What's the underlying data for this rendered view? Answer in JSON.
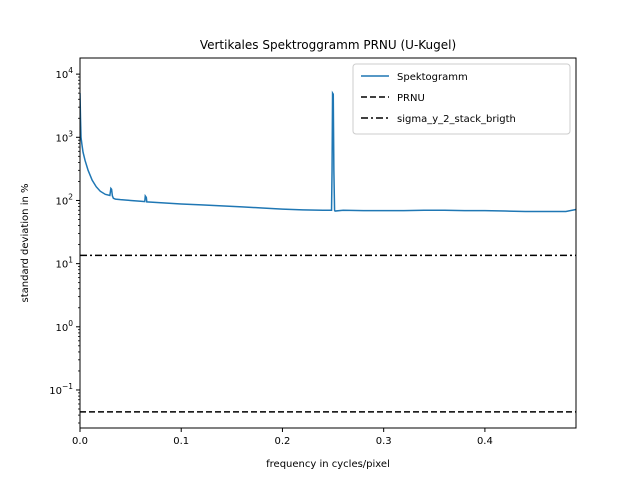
{
  "chart_data": {
    "type": "line",
    "title": "Vertikales Spektroggramm PRNU (U-Kugel)",
    "xlabel": "frequency in cycles/pixel",
    "ylabel": "standard deviation in %",
    "xlim": [
      0.0,
      0.49
    ],
    "ylim": [
      0.025,
      18000
    ],
    "yscale": "log",
    "x_ticks": [
      0.0,
      0.1,
      0.2,
      0.3,
      0.4
    ],
    "x_tick_labels": [
      "0.0",
      "0.1",
      "0.2",
      "0.3",
      "0.4"
    ],
    "y_ticks": [
      0.1,
      1,
      10,
      100,
      1000,
      10000
    ],
    "y_tick_bases": [
      "10",
      "10",
      "10",
      "10",
      "10",
      "10"
    ],
    "y_tick_exponents": [
      "−1",
      "0",
      "1",
      "2",
      "3",
      "4"
    ],
    "legend_position": "top-right",
    "series": [
      {
        "name": "Spektogramm",
        "style": "solid",
        "color": "#1f77b4",
        "x": [
          0.0,
          0.0005,
          0.001,
          0.002,
          0.003,
          0.005,
          0.008,
          0.012,
          0.016,
          0.02,
          0.025,
          0.0295,
          0.0305,
          0.0312,
          0.032,
          0.033,
          0.035,
          0.04,
          0.05,
          0.06,
          0.064,
          0.0645,
          0.0655,
          0.066,
          0.07,
          0.08,
          0.09,
          0.1,
          0.12,
          0.14,
          0.16,
          0.18,
          0.2,
          0.22,
          0.24,
          0.2485,
          0.249,
          0.2495,
          0.2502,
          0.2508,
          0.2515,
          0.252,
          0.26,
          0.28,
          0.3,
          0.32,
          0.34,
          0.36,
          0.38,
          0.4,
          0.42,
          0.44,
          0.46,
          0.48,
          0.49
        ],
        "y": [
          5000,
          2000,
          1000,
          750,
          580,
          430,
          300,
          210,
          165,
          140,
          125,
          120,
          155,
          150,
          118,
          108,
          105,
          103,
          100,
          97,
          96,
          118,
          112,
          95,
          94,
          92,
          90,
          88,
          85,
          82,
          79,
          76,
          73,
          71,
          70,
          70,
          300,
          5000,
          4800,
          300,
          70,
          68,
          70,
          69,
          69,
          69,
          70,
          70,
          69,
          69,
          68,
          67,
          67,
          67,
          72
        ]
      },
      {
        "name": "PRNU",
        "style": "dashed",
        "color": "#000000",
        "x": [
          0.0,
          0.49
        ],
        "y": [
          0.045,
          0.045
        ]
      },
      {
        "name": "sigma_y_2_stack_brigth",
        "style": "dashdot",
        "color": "#000000",
        "x": [
          0.0,
          0.49
        ],
        "y": [
          13.5,
          13.5
        ]
      }
    ]
  }
}
